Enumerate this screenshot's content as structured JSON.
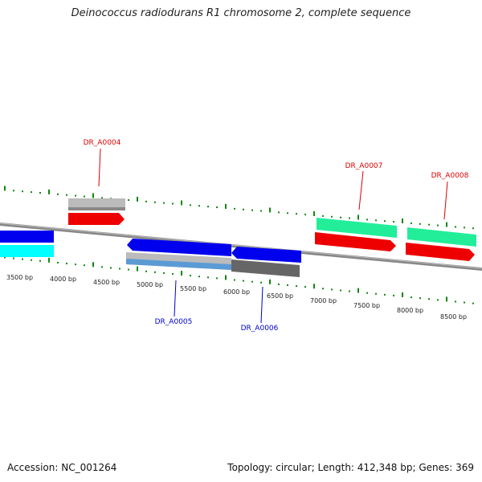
{
  "header": {
    "title": "Deinococcus radiodurans R1 chromosome 2, complete sequence"
  },
  "footer": {
    "accession": "Accession: NC_001264",
    "stats": "Topology: circular; Length: 412,348 bp; Genes: 369"
  },
  "colors": {
    "forward_gene": "#ff0000",
    "reverse_gene": "#0000ff",
    "cds_cyan": "#00ffff",
    "cds_green": "#22ee99",
    "grey_gene": "#bbbbbb",
    "dark_grey_gene": "#666666",
    "steel_blue_gene": "#5b9bd5",
    "tick": "#118811",
    "backbone": "#888888",
    "label_forward": "#dd0000",
    "label_reverse": "#0000cc"
  },
  "scale": {
    "tick_labels": [
      "3500 bp",
      "4000 bp",
      "4500 bp",
      "5000 bp",
      "5500 bp",
      "6000 bp",
      "6500 bp",
      "7000 bp",
      "7500 bp",
      "8000 bp",
      "8500 bp"
    ]
  },
  "genes": {
    "labels_forward": [
      "DR_A0004",
      "DR_A0007",
      "DR_A0008"
    ],
    "labels_reverse": [
      "DR_A0005",
      "DR_A0006"
    ]
  }
}
